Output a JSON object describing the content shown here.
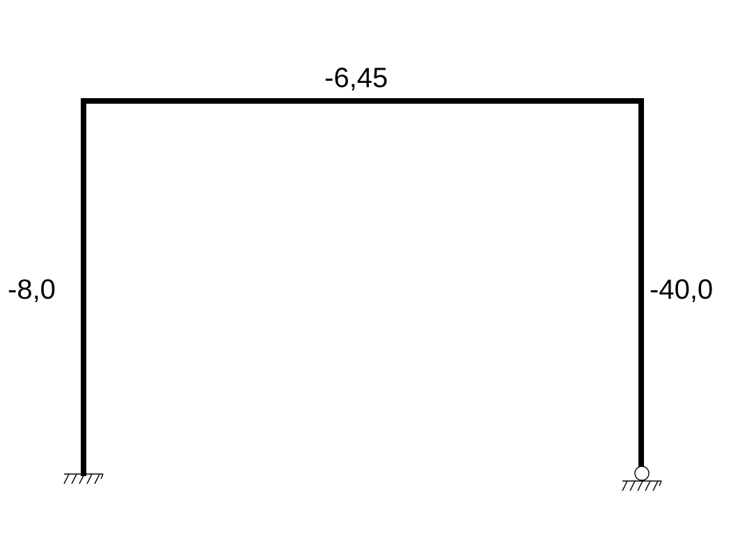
{
  "frame": {
    "beam_label": "-6,45",
    "left_column_label": "-8,0",
    "right_column_label": "-40,0"
  },
  "supports": {
    "left": "fixed-support",
    "right": "pinned-support"
  },
  "colors": {
    "member": "#000000",
    "background": "#ffffff"
  }
}
